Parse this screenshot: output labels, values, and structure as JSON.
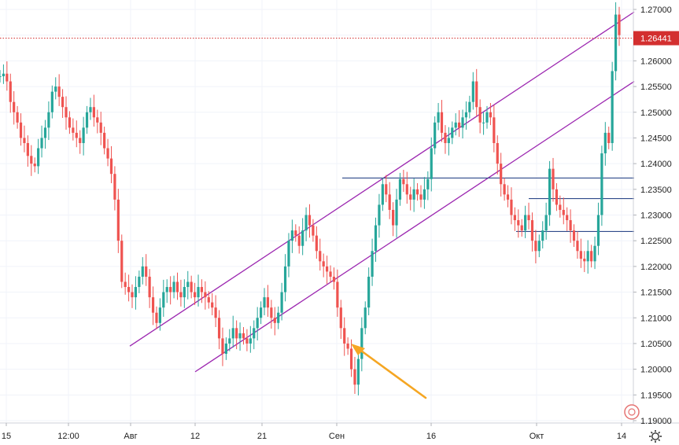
{
  "chart_data": {
    "type": "candlestick",
    "grid": true,
    "x_ticks": [
      "15",
      "12:00",
      "Авг",
      "12",
      "21",
      "Сен",
      "16",
      "Окт",
      "14"
    ],
    "y_ticks": [
      "1.27000",
      "1.26500",
      "1.26000",
      "1.25500",
      "1.25000",
      "1.24500",
      "1.24000",
      "1.23500",
      "1.23000",
      "1.22500",
      "1.22000",
      "1.21500",
      "1.21000",
      "1.20500",
      "1.20000",
      "1.19500",
      "1.19000"
    ],
    "ylim": [
      1.1892,
      1.2727
    ],
    "price_line": {
      "value": 1.26441,
      "label": "1.26441",
      "color": "#d32f2f"
    },
    "series": [
      {
        "values": [
          1.257,
          1.2575,
          1.256,
          1.252,
          1.25,
          1.248,
          1.245,
          1.244,
          1.2415,
          1.24,
          1.2395,
          1.243,
          1.245,
          1.247,
          1.25,
          1.254,
          1.255,
          1.253,
          1.251,
          1.249,
          1.247,
          1.246,
          1.245,
          1.244,
          1.247,
          1.25,
          1.251,
          1.249,
          1.248,
          1.246,
          1.243,
          1.241,
          1.238,
          1.233,
          1.225,
          1.217,
          1.216,
          1.215,
          1.214,
          1.216,
          1.218,
          1.22,
          1.218,
          1.214,
          1.211,
          1.209,
          1.212,
          1.215,
          1.216,
          1.215,
          1.217,
          1.215,
          1.214,
          1.216,
          1.217,
          1.215,
          1.214,
          1.216,
          1.215,
          1.214,
          1.213,
          1.212,
          1.21,
          1.206,
          1.203,
          1.205,
          1.206,
          1.208,
          1.206,
          1.207,
          1.206,
          1.205,
          1.206,
          1.208,
          1.21,
          1.212,
          1.214,
          1.212,
          1.21,
          1.209,
          1.211,
          1.215,
          1.22,
          1.225,
          1.227,
          1.226,
          1.224,
          1.227,
          1.23,
          1.228,
          1.226,
          1.223,
          1.221,
          1.22,
          1.219,
          1.218,
          1.217,
          1.212,
          1.208,
          1.205,
          1.204,
          1.2,
          1.197,
          1.202,
          1.208,
          1.212,
          1.218,
          1.223,
          1.228,
          1.232,
          1.236,
          1.234,
          1.231,
          1.228,
          1.233,
          1.237,
          1.236,
          1.234,
          1.233,
          1.235,
          1.234,
          1.233,
          1.235,
          1.237,
          1.243,
          1.248,
          1.25,
          1.246,
          1.244,
          1.245,
          1.247,
          1.248,
          1.247,
          1.249,
          1.25,
          1.252,
          1.256,
          1.251,
          1.248,
          1.248,
          1.25,
          1.249,
          1.244,
          1.24,
          1.236,
          1.234,
          1.233,
          1.23,
          1.229,
          1.228,
          1.227,
          1.23,
          1.229,
          1.225,
          1.223,
          1.225,
          1.227,
          1.23,
          1.239,
          1.235,
          1.232,
          1.231,
          1.23,
          1.229,
          1.227,
          1.225,
          1.223,
          1.2215,
          1.221,
          1.223,
          1.221,
          1.224,
          1.23,
          1.242,
          1.246,
          1.244,
          1.258,
          1.269,
          1.265
        ]
      }
    ],
    "drawings": {
      "channel_color": "#9c27b0",
      "level_color": "#2f4a8a",
      "arrow_color": "#f5a623",
      "horizontal_levels": [
        1.2372,
        1.2332,
        1.2268
      ]
    }
  }
}
